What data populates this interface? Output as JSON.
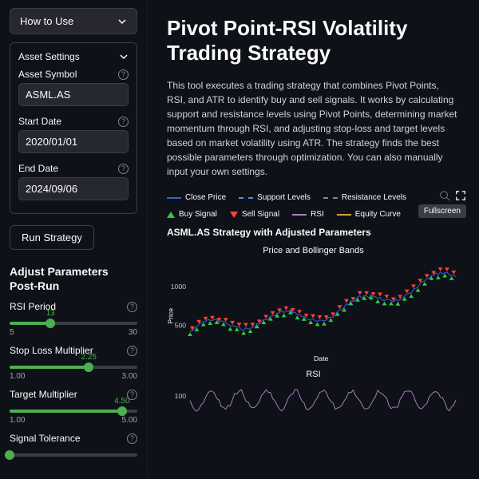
{
  "colors": {
    "bg": "#0e1117",
    "panel": "#262730",
    "border": "#3a3d46",
    "text": "#fafafa",
    "accent": "#4caf50",
    "close_price": "#3b5bdb",
    "support": "#5b8def",
    "resistance": "#808495",
    "buy": "#2ecc40",
    "sell": "#ff4136",
    "rsi": "#b07cc6",
    "equity": "#d4a137"
  },
  "sidebar": {
    "how_to_use": "How to Use",
    "asset_settings": {
      "title": "Asset Settings",
      "symbol_label": "Asset Symbol",
      "symbol_value": "ASML.AS",
      "start_label": "Start Date",
      "start_value": "2020/01/01",
      "end_label": "End Date",
      "end_value": "2024/09/06"
    },
    "run_label": "Run Strategy",
    "adjust_title": "Adjust Parameters Post-Run",
    "sliders": [
      {
        "label": "RSI Period",
        "value": "13",
        "min": "5",
        "max": "30",
        "pct": 32
      },
      {
        "label": "Stop Loss Multiplier",
        "value": "2.25",
        "min": "1.00",
        "max": "3.00",
        "pct": 62
      },
      {
        "label": "Target Multiplier",
        "value": "4.50",
        "min": "1.00",
        "max": "5.00",
        "pct": 88
      },
      {
        "label": "Signal Tolerance",
        "value": "",
        "min": "",
        "max": "",
        "pct": 0
      }
    ]
  },
  "main": {
    "title": "Pivot Point-RSI Volatility Trading Strategy",
    "description": "This tool executes a trading strategy that combines Pivot Points, RSI, and ATR to identify buy and sell signals. It works by calculating support and resistance levels using Pivot Points, determining market momentum through RSI, and adjusting stop-loss and target levels based on market volatility using ATR. The strategy finds the best possible parameters through optimization. You can also manually input your own settings.",
    "legend": {
      "close_price": "Close Price",
      "support": "Support Levels",
      "resistance": "Resistance Levels",
      "buy": "Buy Signal",
      "sell": "Sell Signal",
      "rsi": "RSI",
      "equity": "Equity Curve"
    },
    "tooltip": "Fullscreen",
    "chart_title": "ASML.AS Strategy with Adjusted Parameters",
    "price_chart": {
      "title": "Price and Bollinger Bands",
      "ylabel": "Price",
      "xlabel": "Date",
      "yticks": [
        "500",
        "1000"
      ],
      "ylim": [
        300,
        1150
      ],
      "series_color": "#3b5bdb",
      "buy_color": "#2ecc40",
      "sell_color": "#ff4136"
    },
    "rsi_chart": {
      "title": "RSI",
      "yticks": [
        "100"
      ]
    }
  }
}
